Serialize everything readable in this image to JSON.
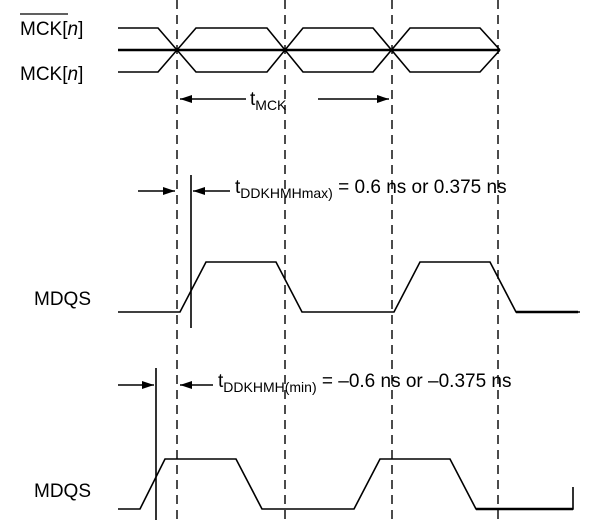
{
  "signals": {
    "mck_bar": {
      "name": "MCK",
      "bracket_open": "[",
      "index": "n",
      "bracket_close": "]"
    },
    "mck": {
      "name": "MCK",
      "bracket_open": "[",
      "index": "n",
      "bracket_close": "]"
    },
    "mdqs_1": "MDQS",
    "mdqs_2": "MDQS"
  },
  "timings": {
    "t_mck": {
      "t": "t",
      "sub": "MCK"
    },
    "t_ddkhmh_max": {
      "t": "t",
      "sub": "DDKHMHmax)",
      "value": " = 0.6 ns or 0.375 ns"
    },
    "t_ddkhmh_min": {
      "t": "t",
      "sub": "DDKHMH(min)",
      "value": " = –0.6 ns or –0.375 ns"
    }
  }
}
